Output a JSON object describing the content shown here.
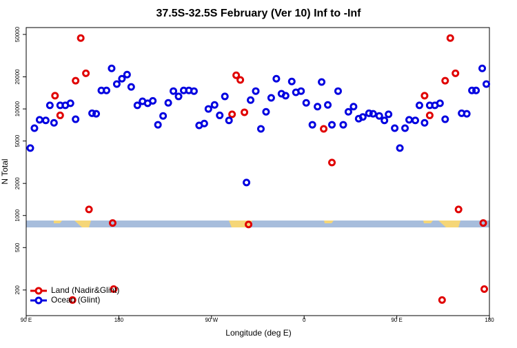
{
  "chart_data": {
    "type": "scatter",
    "title": "37.5S-32.5S February (Ver 10)   Inf to -Inf",
    "x_label": "Longitude (deg E)",
    "y_label": "N Total",
    "xlim": [
      90,
      540
    ],
    "xticks": [
      {
        "value": 90,
        "label": "90 E"
      },
      180,
      {
        "value": 270,
        "label": "90 W"
      },
      {
        "value": 360,
        "label": "0"
      },
      {
        "value": 450,
        "label": "90 E"
      },
      {
        "value": 540,
        "label": "180"
      }
    ],
    "ylim": [
      115,
      58000
    ],
    "yticks": [
      200,
      500,
      1000,
      2000,
      5000,
      10000,
      20000,
      50000
    ],
    "log_y": true,
    "legend": "bottom-left",
    "series": [
      {
        "name": "Land (Nadir&Glint)",
        "color": "#e00000",
        "x": [
          118,
          123,
          138,
          143,
          148,
          151,
          174,
          175,
          135,
          290,
          294,
          298,
          302,
          306,
          379,
          387,
          477,
          482,
          497,
          502,
          507,
          510,
          534,
          535,
          494
        ],
        "values": [
          13300,
          8700,
          18400,
          46200,
          21600,
          1140,
          850,
          204,
          161,
          8900,
          20700,
          18700,
          9300,
          824,
          6500,
          3140,
          13300,
          8700,
          18400,
          46200,
          21600,
          1140,
          850,
          204,
          161
        ]
      },
      {
        "name": "Ocean (Glint)",
        "color": "#0000e0",
        "x": [
          94,
          98,
          103,
          109,
          113,
          117,
          123,
          128,
          133,
          138,
          154,
          158,
          163,
          168,
          173,
          178,
          183,
          188,
          192,
          198,
          203,
          208,
          213,
          218,
          223,
          228,
          233,
          238,
          243,
          248,
          253,
          258,
          263,
          267,
          273,
          278,
          283,
          287,
          304,
          308,
          313,
          318,
          323,
          328,
          333,
          338,
          342,
          348,
          352,
          357,
          362,
          368,
          373,
          377,
          383,
          387,
          393,
          398,
          403,
          408,
          413,
          417,
          423,
          427,
          433,
          438,
          442,
          448,
          453,
          458,
          462,
          468,
          472,
          477,
          482,
          487,
          492,
          497,
          513,
          518,
          523,
          527,
          533,
          537
        ],
        "values": [
          4290,
          6600,
          7900,
          7800,
          10800,
          7400,
          10800,
          10800,
          11300,
          8000,
          9100,
          9000,
          14900,
          14900,
          24000,
          17100,
          19200,
          21000,
          16100,
          10800,
          11800,
          11300,
          11900,
          7100,
          8600,
          11400,
          14700,
          13100,
          14900,
          14900,
          14700,
          7000,
          7300,
          10000,
          10900,
          8700,
          13100,
          7800,
          2040,
          12100,
          14700,
          6500,
          9400,
          12700,
          19200,
          13900,
          13300,
          18100,
          14300,
          14700,
          11400,
          7100,
          10500,
          17900,
          10900,
          7100,
          14700,
          7100,
          9400,
          10500,
          8100,
          8400,
          9100,
          9000,
          8600,
          7800,
          8900,
          6600,
          4290,
          6600,
          7900,
          7800,
          10800,
          7400,
          10800,
          10800,
          11300,
          8000,
          9100,
          9000,
          14900,
          14900,
          24000,
          17100
        ]
      }
    ]
  }
}
